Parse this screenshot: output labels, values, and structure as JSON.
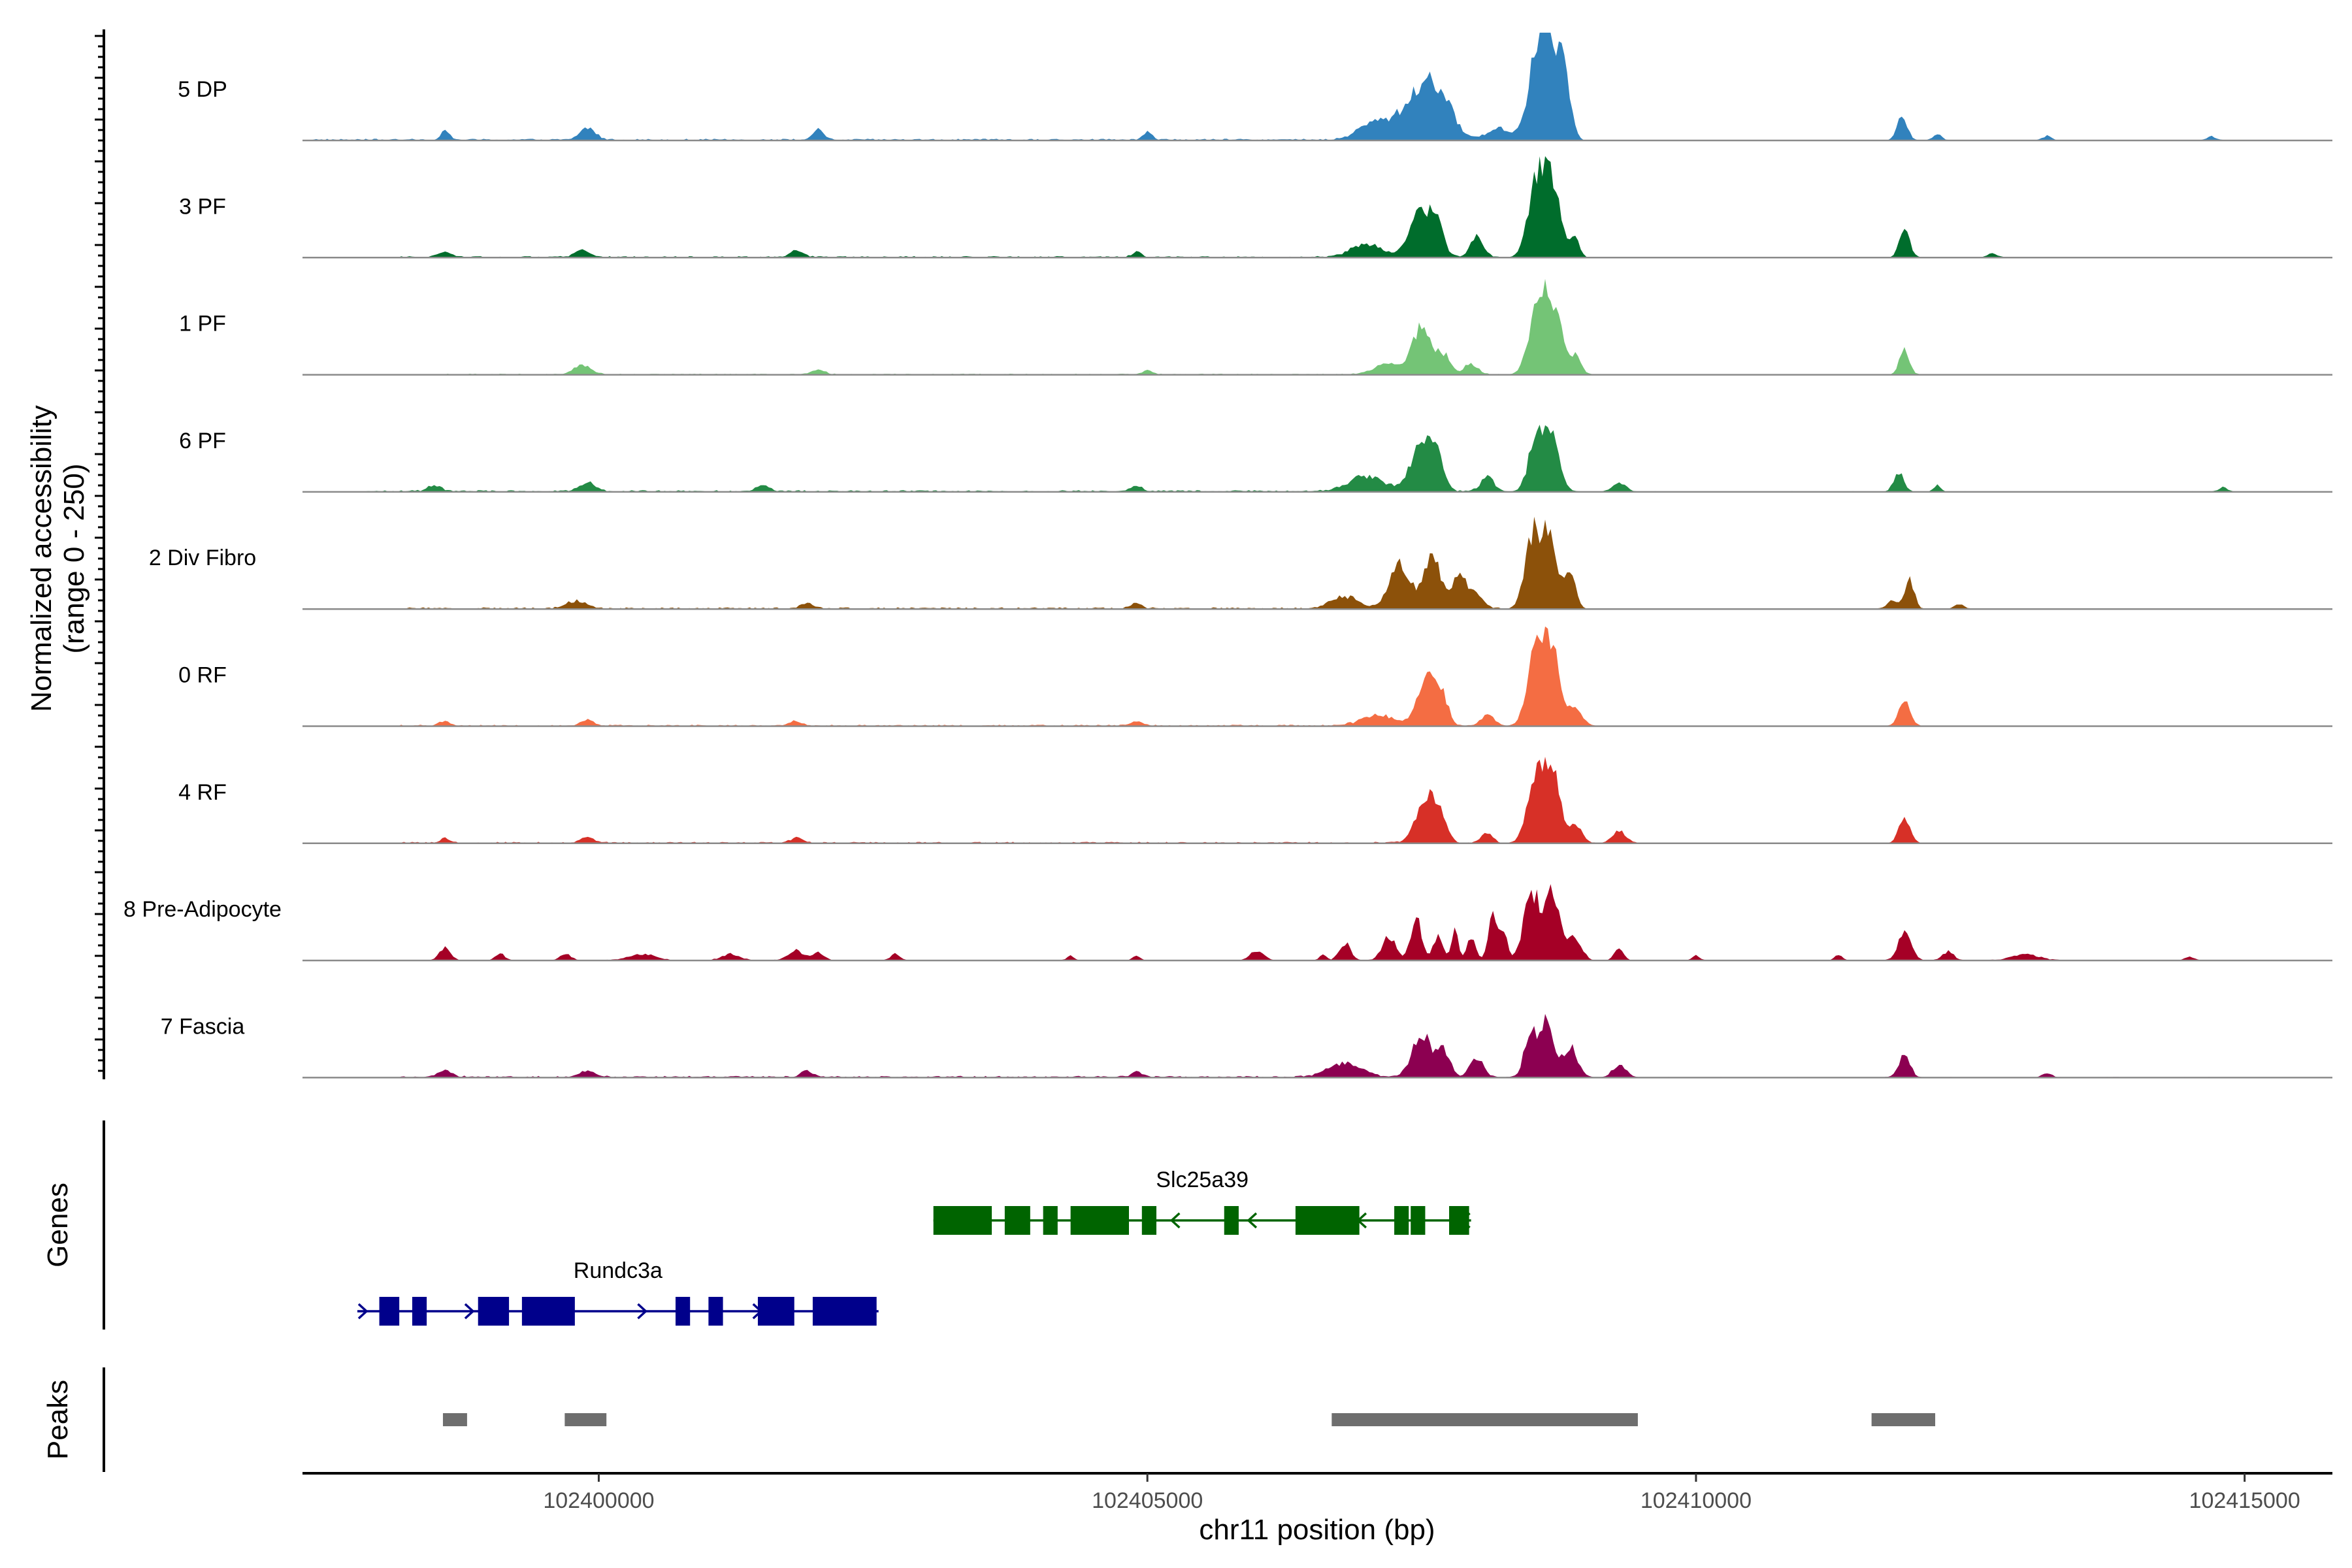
{
  "chart_data": {
    "type": "area",
    "chromosome": "chr11",
    "xlim": [
      102397300,
      102415800
    ],
    "ylim": [
      0,
      250
    ],
    "xlabel": "chr11 position (bp)",
    "ylabel": "Normalized accessibility",
    "ylabel_range": "(range 0 - 250)",
    "genes_label": "Genes",
    "peaks_label": "Peaks",
    "x_ticks": [
      102400000,
      102405000,
      102410000,
      102415000
    ],
    "x_tick_labels": [
      "102400000",
      "102405000",
      "102410000",
      "102415000"
    ],
    "tracks": [
      {
        "name": "5 DP",
        "color": "#3182BD",
        "peaks": [
          [
            102397350,
            102407850,
            8
          ],
          [
            102398600,
            40,
            22
          ],
          [
            102399900,
            70,
            28
          ],
          [
            102402000,
            50,
            22
          ],
          [
            102405000,
            40,
            20
          ],
          [
            102407050,
            140,
            35
          ],
          [
            102407500,
            190,
            105
          ],
          [
            102407650,
            120,
            52
          ],
          [
            102408200,
            100,
            28
          ],
          [
            102408550,
            90,
            140
          ],
          [
            102408650,
            90,
            195
          ],
          [
            102408800,
            55,
            140
          ],
          [
            102411880,
            45,
            60
          ],
          [
            102412200,
            40,
            13
          ],
          [
            102413200,
            40,
            10
          ],
          [
            102414700,
            40,
            9
          ]
        ]
      },
      {
        "name": "3 PF",
        "color": "#006D2C",
        "peaks": [
          [
            102398200,
            102408200,
            7
          ],
          [
            102398600,
            60,
            12
          ],
          [
            102399850,
            70,
            16
          ],
          [
            102401800,
            60,
            15
          ],
          [
            102404900,
            40,
            12
          ],
          [
            102407000,
            140,
            30
          ],
          [
            102407500,
            100,
            115
          ],
          [
            102407650,
            60,
            48
          ],
          [
            102408000,
            60,
            45
          ],
          [
            102408550,
            80,
            170
          ],
          [
            102408700,
            75,
            150
          ],
          [
            102408900,
            40,
            40
          ],
          [
            102411900,
            45,
            65
          ],
          [
            102412700,
            40,
            10
          ]
        ]
      },
      {
        "name": "1 PF",
        "color": "#74C476",
        "peaks": [
          [
            102398600,
            102408600,
            5
          ],
          [
            102399850,
            80,
            20
          ],
          [
            102402000,
            60,
            10
          ],
          [
            102405000,
            40,
            10
          ],
          [
            102407200,
            120,
            25
          ],
          [
            102407500,
            85,
            105
          ],
          [
            102407700,
            60,
            45
          ],
          [
            102407950,
            60,
            25
          ],
          [
            102408550,
            75,
            150
          ],
          [
            102408700,
            80,
            155
          ],
          [
            102408900,
            50,
            40
          ],
          [
            102411900,
            45,
            55
          ]
        ]
      },
      {
        "name": "6 PF",
        "color": "#238B45",
        "peaks": [
          [
            102397900,
            102408000,
            8
          ],
          [
            102398500,
            60,
            14
          ],
          [
            102399900,
            70,
            22
          ],
          [
            102401500,
            60,
            14
          ],
          [
            102404900,
            50,
            14
          ],
          [
            102407000,
            160,
            35
          ],
          [
            102407500,
            95,
            115
          ],
          [
            102407650,
            60,
            60
          ],
          [
            102408100,
            60,
            35
          ],
          [
            102408550,
            70,
            135
          ],
          [
            102408700,
            65,
            110
          ],
          [
            102409300,
            60,
            20
          ],
          [
            102411850,
            45,
            45
          ],
          [
            102412200,
            30,
            16
          ],
          [
            102414800,
            40,
            10
          ]
        ]
      },
      {
        "name": "2 Div Fibro",
        "color": "#8C510A",
        "peaks": [
          [
            102398200,
            102408200,
            8
          ],
          [
            102399800,
            90,
            18
          ],
          [
            102401900,
            60,
            12
          ],
          [
            102404900,
            50,
            12
          ],
          [
            102406800,
            120,
            28
          ],
          [
            102407300,
            90,
            105
          ],
          [
            102407600,
            80,
            118
          ],
          [
            102407850,
            60,
            80
          ],
          [
            102408000,
            60,
            35
          ],
          [
            102408500,
            65,
            150
          ],
          [
            102408650,
            75,
            165
          ],
          [
            102408850,
            50,
            90
          ],
          [
            102411800,
            55,
            20
          ],
          [
            102411950,
            40,
            65
          ],
          [
            102412400,
            40,
            12
          ]
        ]
      },
      {
        "name": "0 RF",
        "color": "#F46D43",
        "peaks": [
          [
            102398200,
            102408200,
            7
          ],
          [
            102398600,
            50,
            10
          ],
          [
            102399900,
            60,
            12
          ],
          [
            102401800,
            60,
            10
          ],
          [
            102404900,
            50,
            10
          ],
          [
            102407100,
            150,
            24
          ],
          [
            102407550,
            85,
            115
          ],
          [
            102407700,
            50,
            50
          ],
          [
            102408100,
            60,
            25
          ],
          [
            102408550,
            80,
            180
          ],
          [
            102408700,
            70,
            150
          ],
          [
            102408900,
            60,
            40
          ],
          [
            102411900,
            50,
            65
          ]
        ]
      },
      {
        "name": "4 RF",
        "color": "#D73027",
        "peaks": [
          [
            102398200,
            102408200,
            7
          ],
          [
            102398600,
            40,
            12
          ],
          [
            102399900,
            60,
            14
          ],
          [
            102401800,
            50,
            12
          ],
          [
            102407550,
            90,
            115
          ],
          [
            102407700,
            50,
            35
          ],
          [
            102408100,
            50,
            25
          ],
          [
            102408550,
            80,
            150
          ],
          [
            102408700,
            70,
            140
          ],
          [
            102408900,
            60,
            40
          ],
          [
            102409300,
            60,
            30
          ],
          [
            102411900,
            50,
            60
          ]
        ]
      },
      {
        "name": "8 Pre-Adipocyte",
        "color": "#A50026",
        "peaks": [
          [
            102398600,
            50,
            28
          ],
          [
            102399100,
            40,
            16
          ],
          [
            102399700,
            50,
            14
          ],
          [
            102400400,
            120,
            14
          ],
          [
            102401200,
            80,
            14
          ],
          [
            102401800,
            70,
            22
          ],
          [
            102402000,
            50,
            18
          ],
          [
            102402700,
            40,
            14
          ],
          [
            102404300,
            30,
            12
          ],
          [
            102404900,
            30,
            10
          ],
          [
            102406000,
            60,
            22
          ],
          [
            102406600,
            30,
            12
          ],
          [
            102406800,
            50,
            40
          ],
          [
            102407200,
            60,
            55
          ],
          [
            102407450,
            50,
            95
          ],
          [
            102407650,
            40,
            60
          ],
          [
            102407800,
            30,
            75
          ],
          [
            102407950,
            40,
            50
          ],
          [
            102408150,
            40,
            105
          ],
          [
            102408250,
            30,
            65
          ],
          [
            102408500,
            70,
            160
          ],
          [
            102408700,
            70,
            155
          ],
          [
            102408900,
            60,
            50
          ],
          [
            102409300,
            40,
            30
          ],
          [
            102410000,
            30,
            12
          ],
          [
            102411300,
            30,
            14
          ],
          [
            102411900,
            60,
            60
          ],
          [
            102412300,
            50,
            20
          ],
          [
            102413000,
            120,
            14
          ],
          [
            102414500,
            40,
            8
          ]
        ]
      },
      {
        "name": "7 Fascia",
        "color": "#8C0051",
        "peaks": [
          [
            102398200,
            102408200,
            8
          ],
          [
            102398600,
            70,
            14
          ],
          [
            102399900,
            70,
            16
          ],
          [
            102401900,
            60,
            14
          ],
          [
            102404900,
            50,
            12
          ],
          [
            102406800,
            150,
            32
          ],
          [
            102407500,
            85,
            100
          ],
          [
            102407700,
            60,
            60
          ],
          [
            102408000,
            60,
            45
          ],
          [
            102408500,
            60,
            110
          ],
          [
            102408650,
            55,
            130
          ],
          [
            102408850,
            70,
            70
          ],
          [
            102409300,
            60,
            30
          ],
          [
            102411900,
            50,
            55
          ],
          [
            102413200,
            40,
            10
          ]
        ]
      }
    ],
    "genes": [
      {
        "name": "Slc25a39",
        "color": "#006400",
        "strand": "-",
        "start": 102403050,
        "end": 102407950,
        "exons": [
          [
            102403050,
            102403600
          ],
          [
            102403700,
            102403950
          ],
          [
            102404050,
            102404200
          ],
          [
            102404300,
            102404850
          ],
          [
            102404950,
            102405100
          ],
          [
            102405700,
            102405850
          ],
          [
            102406350,
            102406950
          ],
          [
            102407250,
            102407400
          ],
          [
            102407400,
            102407550
          ],
          [
            102407750,
            102407950
          ]
        ]
      },
      {
        "name": "Rundc3a",
        "color": "#00008B",
        "strand": "+",
        "start": 102397800,
        "end": 102402550,
        "exons": [
          [
            102398000,
            102398200
          ],
          [
            102398300,
            102398450
          ],
          [
            102398900,
            102399200
          ],
          [
            102399300,
            102399800
          ],
          [
            102400700,
            102400850
          ],
          [
            102401000,
            102401150
          ],
          [
            102401450,
            102401800
          ],
          [
            102401950,
            102402550
          ]
        ]
      }
    ],
    "peak_regions": [
      [
        102398580,
        102398800
      ],
      [
        102399690,
        102400070
      ],
      [
        102406680,
        102409470
      ],
      [
        102411600,
        102412180
      ]
    ]
  }
}
